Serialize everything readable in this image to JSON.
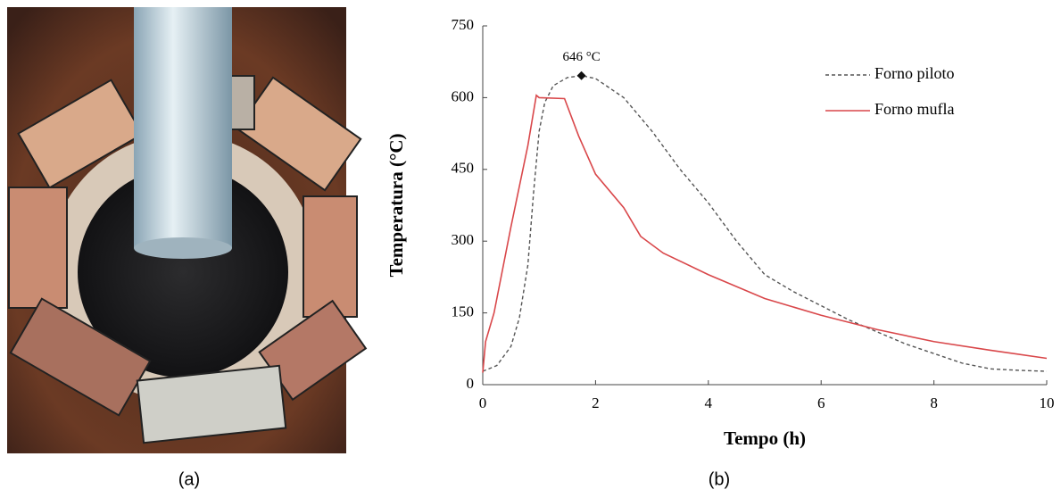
{
  "captions": [
    "(a)",
    "(b)"
  ],
  "chart_data": {
    "type": "line",
    "xlabel": "Tempo (h)",
    "ylabel": "Temperatura (°C)",
    "xlim": [
      0,
      10
    ],
    "xticks": [
      0,
      2,
      4,
      6,
      8,
      10
    ],
    "ylim": [
      0,
      750
    ],
    "yticks": [
      0,
      150,
      300,
      450,
      600,
      750
    ],
    "legend": "upper right",
    "annotation": {
      "text": "646 °C",
      "x": 1.75,
      "y": 646
    },
    "series": [
      {
        "name": "Forno piloto",
        "color": "#555555",
        "style": "dashed",
        "x": [
          0,
          0.25,
          0.5,
          0.65,
          0.8,
          0.9,
          1.0,
          1.1,
          1.25,
          1.5,
          1.75,
          2.0,
          2.5,
          3.0,
          3.5,
          4.0,
          4.5,
          5.0,
          5.5,
          6.0,
          6.5,
          7.0,
          7.5,
          8.0,
          8.5,
          9.0,
          9.5,
          10.0
        ],
        "values": [
          28,
          40,
          80,
          140,
          250,
          400,
          530,
          590,
          625,
          642,
          646,
          640,
          600,
          530,
          450,
          380,
          300,
          230,
          195,
          165,
          135,
          110,
          85,
          65,
          45,
          33,
          30,
          28
        ]
      },
      {
        "name": "Forno mufla",
        "color": "#d9474a",
        "style": "solid",
        "x": [
          0,
          0.05,
          0.2,
          0.5,
          0.8,
          0.95,
          1.0,
          1.45,
          1.7,
          2.0,
          2.5,
          2.8,
          3.2,
          4.0,
          5.0,
          6.0,
          7.0,
          8.0,
          9.0,
          10.0
        ],
        "values": [
          25,
          90,
          150,
          330,
          500,
          605,
          600,
          598,
          520,
          440,
          370,
          310,
          275,
          230,
          180,
          145,
          115,
          90,
          72,
          55
        ]
      }
    ]
  }
}
